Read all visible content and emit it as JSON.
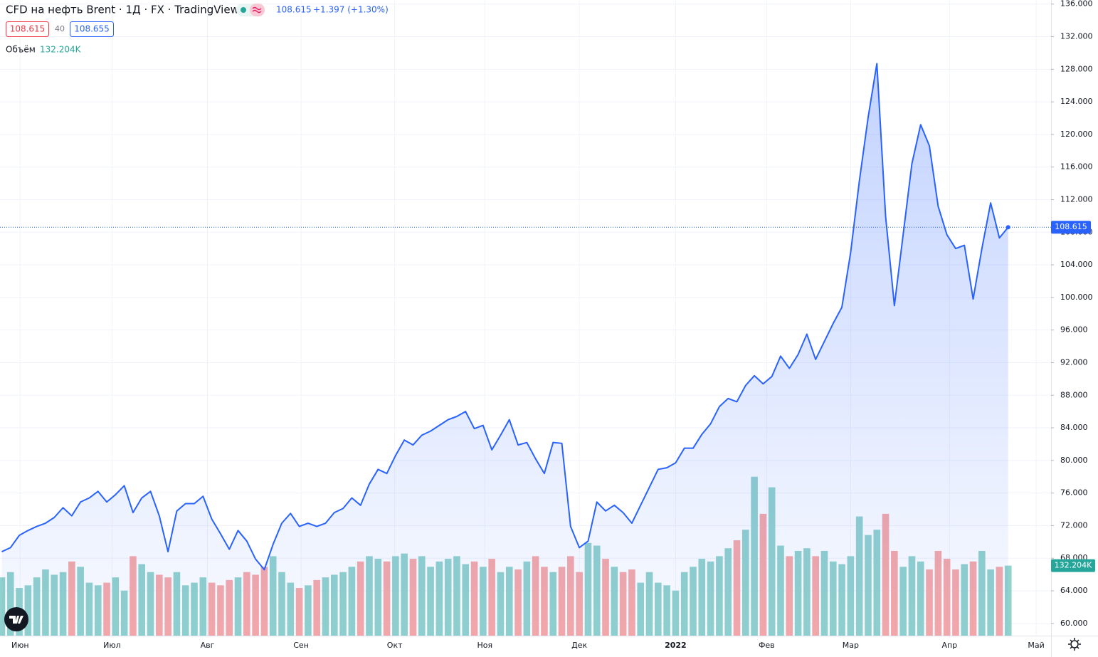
{
  "chart_data": {
    "type": "area",
    "title": "CFD на нефть Brent · 1Д · FX · TradingView",
    "change_label": "+1.397 (+1.30%)",
    "spread": 40,
    "ask": 108.655,
    "x": [
      0,
      1,
      2,
      3,
      4,
      5,
      6,
      7,
      8,
      9,
      10,
      11,
      12,
      13,
      14,
      15,
      16,
      17,
      18,
      19,
      20,
      21,
      22,
      23,
      24,
      25,
      26,
      27,
      28,
      29,
      30,
      31,
      32,
      33,
      34,
      35,
      36,
      37,
      38,
      39,
      40,
      41,
      42,
      43,
      44,
      45,
      46,
      47,
      48,
      49,
      50,
      51,
      52,
      53,
      54,
      55,
      56,
      57,
      58,
      59,
      60,
      61,
      62,
      63,
      64,
      65,
      66,
      67,
      68,
      69,
      70,
      71,
      72,
      73,
      74,
      75,
      76,
      77,
      78,
      79,
      80,
      81,
      82,
      83,
      84,
      85,
      86,
      87,
      88,
      89,
      90,
      91,
      92,
      93,
      94,
      95,
      96,
      97,
      98,
      99,
      100,
      101,
      102,
      103,
      104,
      105,
      106,
      107,
      108,
      109,
      110,
      111,
      112,
      113,
      114,
      115
    ],
    "price": {
      "color": "#2962ff",
      "values": [
        68.8,
        69.3,
        70.8,
        71.4,
        71.9,
        72.3,
        73.0,
        74.2,
        73.2,
        74.9,
        75.4,
        76.2,
        74.9,
        75.8,
        76.9,
        73.6,
        75.4,
        76.2,
        73.2,
        68.8,
        73.8,
        74.7,
        74.7,
        75.6,
        72.8,
        71.0,
        69.1,
        71.4,
        70.1,
        67.9,
        66.6,
        69.7,
        72.3,
        73.5,
        71.9,
        72.3,
        71.9,
        72.3,
        73.6,
        74.1,
        75.4,
        74.5,
        77.1,
        78.9,
        78.4,
        80.6,
        82.5,
        81.9,
        83.1,
        83.6,
        84.3,
        85.0,
        85.4,
        86.0,
        83.9,
        84.3,
        81.3,
        83.1,
        85.0,
        81.9,
        82.2,
        80.2,
        78.4,
        82.2,
        82.1,
        71.9,
        69.3,
        70.1,
        74.9,
        73.8,
        74.5,
        73.6,
        72.3,
        74.5,
        76.7,
        78.9,
        79.1,
        79.7,
        81.5,
        81.5,
        83.2,
        84.5,
        86.6,
        87.6,
        87.2,
        89.2,
        90.4,
        89.4,
        90.3,
        92.8,
        91.3,
        93.0,
        95.5,
        92.4,
        94.6,
        96.8,
        98.8,
        105.5,
        114.3,
        122.1,
        128.7,
        109.9,
        99.0,
        107.7,
        116.4,
        121.2,
        118.6,
        111.2,
        107.7,
        106.0,
        106.4,
        99.8,
        106.0,
        111.6,
        107.3,
        108.615
      ]
    },
    "volume": {
      "name": "Объём",
      "up_color": "#92d2cc",
      "down_color": "#f7a9a7",
      "value_label": "132.204K",
      "values": [
        110,
        120,
        90,
        95,
        110,
        125,
        115,
        120,
        140,
        130,
        100,
        95,
        100,
        110,
        85,
        150,
        135,
        120,
        115,
        110,
        120,
        95,
        100,
        110,
        100,
        95,
        105,
        110,
        120,
        115,
        130,
        150,
        120,
        100,
        90,
        95,
        105,
        110,
        115,
        120,
        130,
        140,
        150,
        145,
        140,
        150,
        155,
        145,
        150,
        130,
        140,
        145,
        150,
        135,
        140,
        130,
        145,
        120,
        130,
        125,
        140,
        150,
        130,
        120,
        130,
        150,
        120,
        175,
        170,
        145,
        130,
        120,
        125,
        100,
        120,
        100,
        95,
        85,
        120,
        130,
        145,
        140,
        150,
        165,
        180,
        200,
        300,
        230,
        280,
        170,
        150,
        160,
        165,
        150,
        160,
        140,
        135,
        150,
        225,
        190,
        200,
        230,
        160,
        130,
        150,
        140,
        125,
        160,
        145,
        125,
        135,
        140,
        160,
        125,
        130,
        132.204
      ]
    },
    "xlim": [
      -0.2,
      119.9
    ],
    "xticks": [
      {
        "value": 2.1,
        "label": "Июн"
      },
      {
        "value": 12.6,
        "label": "Июл"
      },
      {
        "value": 23.5,
        "label": "Авг"
      },
      {
        "value": 34.2,
        "label": "Сен"
      },
      {
        "value": 44.9,
        "label": "Окт"
      },
      {
        "value": 55.2,
        "label": "Ноя"
      },
      {
        "value": 66.0,
        "label": "Дек"
      },
      {
        "value": 77.0,
        "label": "2022"
      },
      {
        "value": 87.4,
        "label": "Фев"
      },
      {
        "value": 97.0,
        "label": "Мар"
      },
      {
        "value": 108.3,
        "label": "Апр"
      },
      {
        "value": 118.2,
        "label": "Май"
      }
    ],
    "ylim": [
      58.5,
      136.5
    ],
    "yticks": [
      {
        "value": 60,
        "label": "60.000"
      },
      {
        "value": 64,
        "label": "64.000"
      },
      {
        "value": 68,
        "label": "68.000"
      },
      {
        "value": 72,
        "label": "72.000"
      },
      {
        "value": 76,
        "label": "76.000"
      },
      {
        "value": 80,
        "label": "80.000"
      },
      {
        "value": 84,
        "label": "84.000"
      },
      {
        "value": 88,
        "label": "88.000"
      },
      {
        "value": 92,
        "label": "92.000"
      },
      {
        "value": 96,
        "label": "96.000"
      },
      {
        "value": 100,
        "label": "100.000"
      },
      {
        "value": 104,
        "label": "104.000"
      },
      {
        "value": 108,
        "label": "108.000"
      },
      {
        "value": 112,
        "label": "112.000"
      },
      {
        "value": 116,
        "label": "116.000"
      },
      {
        "value": 120,
        "label": "120.000"
      },
      {
        "value": 124,
        "label": "124.000"
      },
      {
        "value": 128,
        "label": "128.000"
      },
      {
        "value": 132,
        "label": "132.000"
      },
      {
        "value": 136,
        "label": "136.000"
      }
    ],
    "grid": true
  }
}
